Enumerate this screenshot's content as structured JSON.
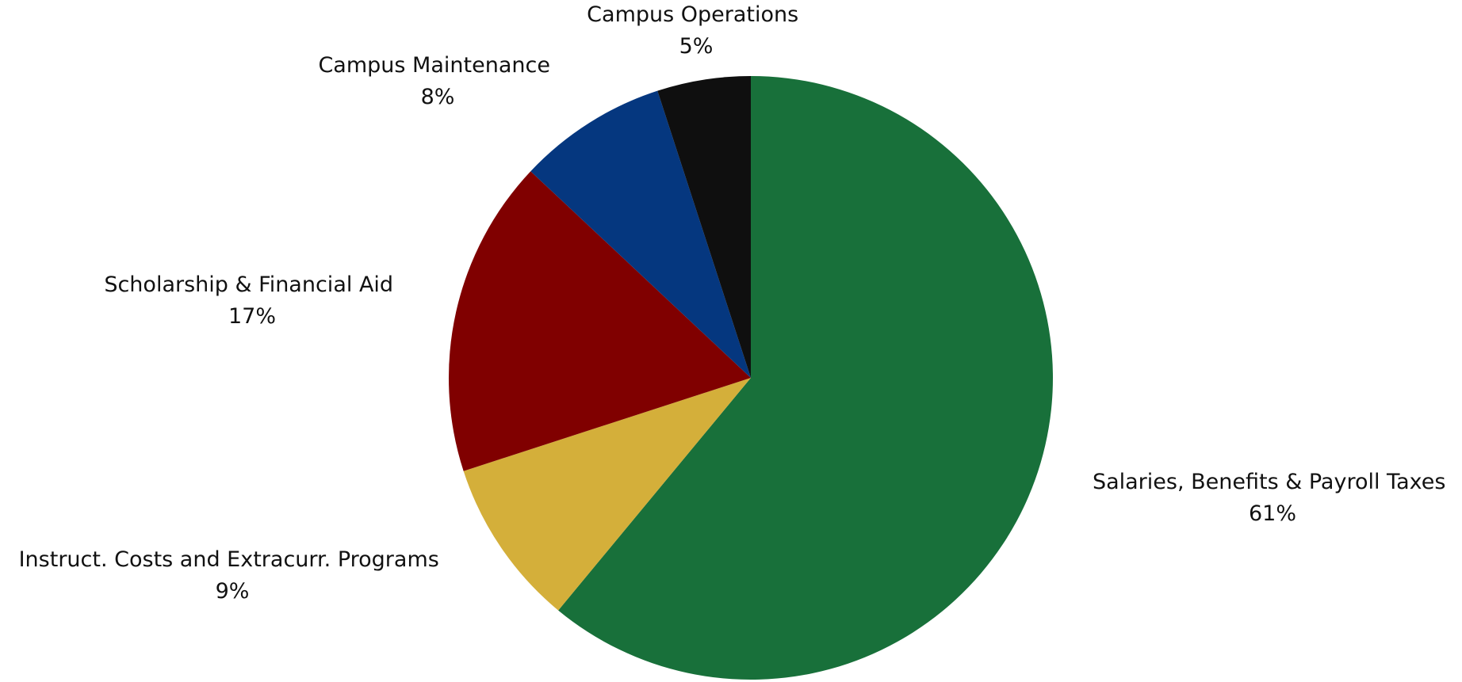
{
  "chart_data": {
    "type": "pie",
    "title": "",
    "start_angle_deg": 0,
    "direction": "clockwise",
    "slices": [
      {
        "label": "Salaries, Benefits & Payroll Taxes",
        "value": 61,
        "value_label": "61%",
        "color": "#18703A"
      },
      {
        "label": "Instruct. Costs and Extracurr. Programs",
        "value": 9,
        "value_label": "9%",
        "color": "#D4AF3A"
      },
      {
        "label": "Scholarship & Financial Aid",
        "value": 17,
        "value_label": "17%",
        "color": "#800000"
      },
      {
        "label": "Campus Maintenance",
        "value": 8,
        "value_label": "8%",
        "color": "#05377F"
      },
      {
        "label": "Campus Operations",
        "value": 5,
        "value_label": "5%",
        "color": "#0F0F0F"
      }
    ],
    "legend": "none"
  }
}
